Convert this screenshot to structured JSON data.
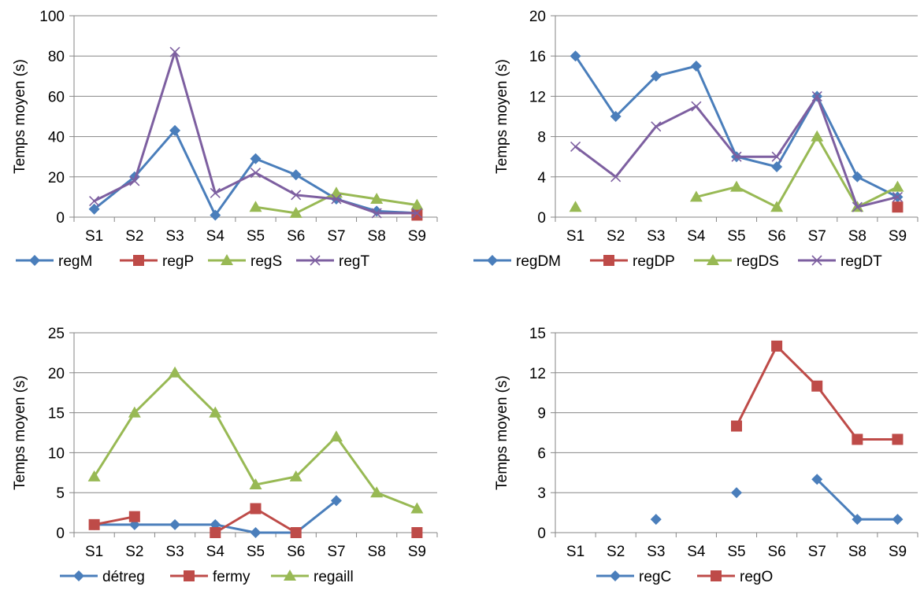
{
  "colors": {
    "blue": "#4a7ebb",
    "red": "#be4b48",
    "green": "#98b954",
    "purple": "#7d5fa0",
    "grid": "#868686",
    "axis": "#868686"
  },
  "chart_data": [
    {
      "type": "line",
      "categories": [
        "S1",
        "S2",
        "S3",
        "S4",
        "S5",
        "S6",
        "S7",
        "S8",
        "S9"
      ],
      "ylabel": "Temps moyen (s)",
      "ylim": [
        0,
        100
      ],
      "yticks": [
        0,
        20,
        40,
        60,
        80,
        100
      ],
      "grid": true,
      "legend": "bottom",
      "series": [
        {
          "name": "regM",
          "color": "blue",
          "marker": "diamond",
          "values": [
            4,
            20,
            43,
            1,
            29,
            21,
            9,
            3,
            2
          ]
        },
        {
          "name": "regP",
          "color": "red",
          "marker": "square",
          "values": [
            null,
            null,
            null,
            null,
            null,
            null,
            null,
            null,
            1
          ]
        },
        {
          "name": "regS",
          "color": "green",
          "marker": "triangle",
          "values": [
            null,
            null,
            null,
            null,
            5,
            2,
            12,
            9,
            6
          ]
        },
        {
          "name": "regT",
          "color": "purple",
          "marker": "x",
          "values": [
            8,
            18,
            82,
            12,
            22,
            11,
            9,
            2,
            2
          ]
        }
      ]
    },
    {
      "type": "line",
      "categories": [
        "S1",
        "S2",
        "S3",
        "S4",
        "S5",
        "S6",
        "S7",
        "S8",
        "S9"
      ],
      "ylabel": "Temps moyen (s)",
      "ylim": [
        0,
        20
      ],
      "yticks": [
        0,
        4,
        8,
        12,
        16,
        20
      ],
      "grid": true,
      "legend": "bottom",
      "series": [
        {
          "name": "regDM",
          "color": "blue",
          "marker": "diamond",
          "values": [
            16,
            10,
            14,
            15,
            6,
            5,
            12,
            4,
            2
          ]
        },
        {
          "name": "regDP",
          "color": "red",
          "marker": "square",
          "values": [
            null,
            null,
            null,
            null,
            null,
            null,
            null,
            null,
            1
          ]
        },
        {
          "name": "regDS",
          "color": "green",
          "marker": "triangle",
          "values": [
            1,
            null,
            null,
            2,
            3,
            1,
            8,
            1,
            3
          ]
        },
        {
          "name": "regDT",
          "color": "purple",
          "marker": "x",
          "values": [
            7,
            4,
            9,
            11,
            6,
            6,
            12,
            1,
            2
          ]
        }
      ]
    },
    {
      "type": "line",
      "categories": [
        "S1",
        "S2",
        "S3",
        "S4",
        "S5",
        "S6",
        "S7",
        "S8",
        "S9"
      ],
      "ylabel": "Temps moyen (s)",
      "ylim": [
        0,
        25
      ],
      "yticks": [
        0,
        5,
        10,
        15,
        20,
        25
      ],
      "grid": true,
      "legend": "bottom",
      "series": [
        {
          "name": "détreg",
          "color": "blue",
          "marker": "diamond",
          "values": [
            1,
            1,
            1,
            1,
            0,
            0,
            4,
            null,
            null
          ]
        },
        {
          "name": "fermy",
          "color": "red",
          "marker": "square",
          "values": [
            1,
            2,
            null,
            0,
            3,
            0,
            null,
            null,
            0
          ]
        },
        {
          "name": "regaill",
          "color": "green",
          "marker": "triangle",
          "values": [
            7,
            15,
            20,
            15,
            6,
            7,
            12,
            5,
            3
          ]
        }
      ]
    },
    {
      "type": "line",
      "categories": [
        "S1",
        "S2",
        "S3",
        "S4",
        "S5",
        "S6",
        "S7",
        "S8",
        "S9"
      ],
      "ylabel": "Temps moyen (s)",
      "ylim": [
        0,
        15
      ],
      "yticks": [
        0,
        3,
        6,
        9,
        12,
        15
      ],
      "grid": true,
      "legend": "bottom",
      "series": [
        {
          "name": "regC",
          "color": "blue",
          "marker": "diamond",
          "values": [
            null,
            null,
            1,
            null,
            3,
            null,
            4,
            1,
            1
          ]
        },
        {
          "name": "regO",
          "color": "red",
          "marker": "square",
          "values": [
            null,
            null,
            null,
            null,
            8,
            14,
            11,
            7,
            7
          ]
        }
      ]
    }
  ]
}
